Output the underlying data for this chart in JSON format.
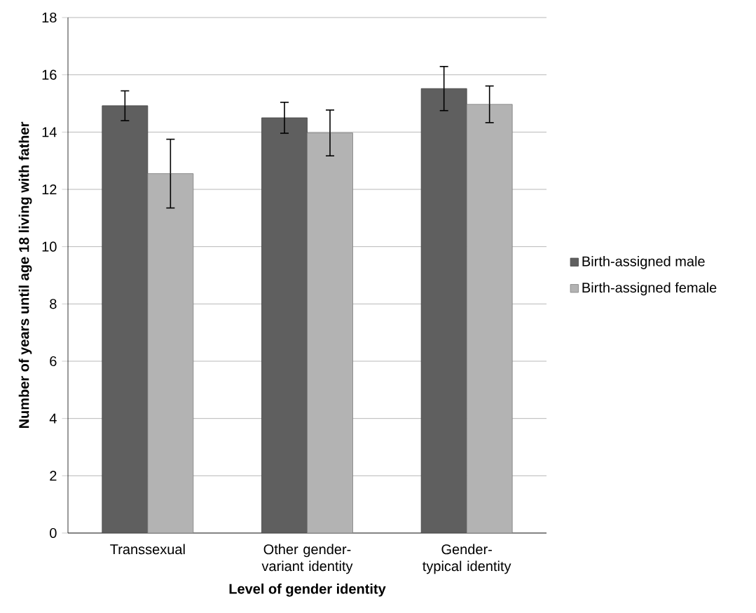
{
  "chart_data": {
    "type": "bar",
    "xlabel": "Level of gender identity",
    "ylabel": "Number of years until age 18 living with father",
    "categories": [
      "Transsexual",
      "Other gender-variant identity",
      "Gender-typical identity"
    ],
    "series": [
      {
        "name": "Birth-assigned male",
        "color": "#5f5f5f",
        "values": [
          14.92,
          14.5,
          15.52
        ],
        "errors": [
          0.52,
          0.54,
          0.77
        ]
      },
      {
        "name": "Birth-assigned female",
        "color": "#b3b3b3",
        "values": [
          12.55,
          13.97,
          14.97
        ],
        "errors": [
          1.2,
          0.8,
          0.64
        ]
      }
    ],
    "ylim": [
      0,
      18
    ],
    "yticks": [
      0,
      2,
      4,
      6,
      8,
      10,
      12,
      14,
      16,
      18
    ],
    "grid": "y",
    "legend": "right"
  }
}
